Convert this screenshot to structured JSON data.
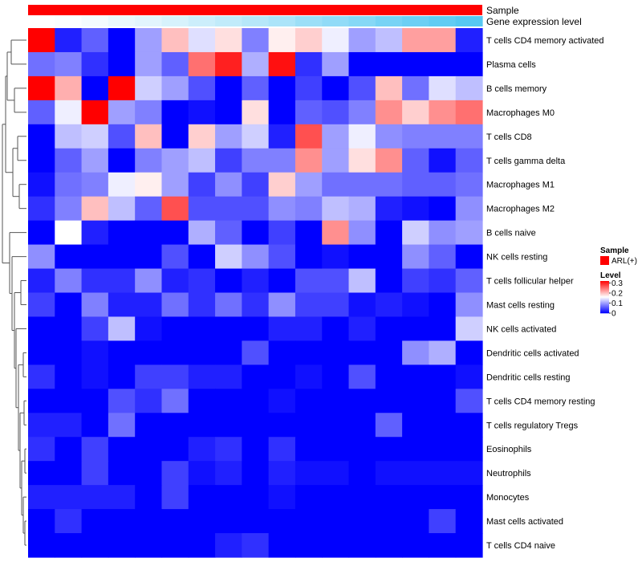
{
  "chart_data": {
    "type": "heatmap",
    "title": "",
    "rows": [
      "T cells CD4 memory activated",
      "Plasma cells",
      "B cells memory",
      "Macrophages M0",
      "T cells CD8",
      "T cells gamma delta",
      "Macrophages M1",
      "Macrophages M2",
      "B cells naive",
      "NK cells resting",
      "T cells follicular helper",
      "Mast cells resting",
      "NK cells activated",
      "Dendritic cells activated",
      "Dendritic cells resting",
      "T cells CD4 memory resting",
      "T cells regulatory  Tregs",
      "Eosinophils",
      "Neutrophils",
      "Monocytes",
      "Mast cells activated",
      "T cells CD4 naive"
    ],
    "n_columns": 17,
    "values": [
      [
        0.32,
        0.02,
        0.06,
        0.0,
        0.1,
        0.2,
        0.14,
        0.18,
        0.08,
        0.17,
        0.19,
        0.15,
        0.1,
        0.12,
        0.22,
        0.22,
        0.02
      ],
      [
        0.07,
        0.08,
        0.03,
        0.0,
        0.1,
        0.06,
        0.25,
        0.3,
        0.11,
        0.31,
        0.03,
        0.1,
        0.0,
        0.0,
        0.0,
        0.0,
        0.0
      ],
      [
        0.32,
        0.21,
        0.0,
        0.32,
        0.13,
        0.1,
        0.05,
        0.0,
        0.06,
        0.0,
        0.04,
        0.0,
        0.05,
        0.2,
        0.07,
        0.14,
        0.12
      ],
      [
        0.06,
        0.15,
        0.32,
        0.1,
        0.08,
        0.0,
        0.01,
        0.0,
        0.18,
        0.0,
        0.06,
        0.05,
        0.08,
        0.23,
        0.19,
        0.23,
        0.25
      ],
      [
        0.0,
        0.12,
        0.13,
        0.05,
        0.2,
        0.0,
        0.19,
        0.1,
        0.13,
        0.02,
        0.27,
        0.1,
        0.15,
        0.09,
        0.08,
        0.08,
        0.08
      ],
      [
        0.0,
        0.06,
        0.1,
        0.0,
        0.08,
        0.1,
        0.12,
        0.04,
        0.08,
        0.08,
        0.23,
        0.1,
        0.18,
        0.23,
        0.06,
        0.01,
        0.06
      ],
      [
        0.01,
        0.07,
        0.08,
        0.15,
        0.17,
        0.1,
        0.04,
        0.09,
        0.04,
        0.19,
        0.1,
        0.07,
        0.07,
        0.07,
        0.06,
        0.06,
        0.07
      ],
      [
        0.03,
        0.08,
        0.2,
        0.12,
        0.06,
        0.27,
        0.05,
        0.05,
        0.05,
        0.09,
        0.08,
        0.12,
        0.11,
        0.02,
        0.01,
        0.0,
        0.09
      ],
      [
        0.0,
        0.16,
        0.02,
        0.0,
        0.0,
        0.0,
        0.11,
        0.06,
        0.0,
        0.04,
        0.0,
        0.23,
        0.09,
        0.0,
        0.13,
        0.09,
        0.1
      ],
      [
        0.09,
        0.0,
        0.0,
        0.0,
        0.0,
        0.05,
        0.0,
        0.13,
        0.09,
        0.05,
        0.0,
        0.01,
        0.0,
        0.0,
        0.09,
        0.06,
        0.0
      ],
      [
        0.02,
        0.08,
        0.03,
        0.03,
        0.09,
        0.02,
        0.03,
        0.0,
        0.02,
        0.0,
        0.05,
        0.05,
        0.12,
        0.0,
        0.04,
        0.03,
        0.06
      ],
      [
        0.04,
        0.0,
        0.08,
        0.02,
        0.02,
        0.07,
        0.03,
        0.07,
        0.03,
        0.09,
        0.04,
        0.04,
        0.01,
        0.02,
        0.01,
        0.0,
        0.09
      ],
      [
        0.0,
        0.0,
        0.04,
        0.12,
        0.01,
        0.0,
        0.0,
        0.0,
        0.0,
        0.02,
        0.02,
        0.0,
        0.02,
        0.0,
        0.0,
        0.0,
        0.13
      ],
      [
        0.0,
        0.0,
        0.01,
        0.0,
        0.0,
        0.0,
        0.0,
        0.0,
        0.05,
        0.0,
        0.0,
        0.0,
        0.0,
        0.0,
        0.09,
        0.11,
        0.0
      ],
      [
        0.03,
        0.0,
        0.01,
        0.0,
        0.04,
        0.04,
        0.02,
        0.02,
        0.0,
        0.0,
        0.01,
        0.0,
        0.05,
        0.0,
        0.0,
        0.0,
        0.01
      ],
      [
        0.0,
        0.0,
        0.0,
        0.05,
        0.03,
        0.07,
        0.0,
        0.0,
        0.0,
        0.01,
        0.0,
        0.0,
        0.0,
        0.0,
        0.0,
        0.0,
        0.05
      ],
      [
        0.02,
        0.02,
        0.0,
        0.07,
        0.0,
        0.0,
        0.0,
        0.0,
        0.0,
        0.0,
        0.0,
        0.0,
        0.0,
        0.06,
        0.0,
        0.0,
        0.0
      ],
      [
        0.03,
        0.0,
        0.04,
        0.0,
        0.0,
        0.0,
        0.02,
        0.03,
        0.0,
        0.03,
        0.0,
        0.0,
        0.0,
        0.0,
        0.0,
        0.0,
        0.0
      ],
      [
        0.0,
        0.0,
        0.04,
        0.0,
        0.0,
        0.04,
        0.01,
        0.02,
        0.0,
        0.02,
        0.01,
        0.01,
        0.0,
        0.01,
        0.01,
        0.01,
        0.01
      ],
      [
        0.02,
        0.02,
        0.02,
        0.02,
        0.0,
        0.04,
        0.0,
        0.0,
        0.0,
        0.01,
        0.0,
        0.0,
        0.0,
        0.0,
        0.0,
        0.0,
        0.0
      ],
      [
        0.0,
        0.03,
        0.0,
        0.0,
        0.0,
        0.0,
        0.0,
        0.0,
        0.0,
        0.0,
        0.0,
        0.0,
        0.0,
        0.0,
        0.0,
        0.04,
        0.0
      ],
      [
        0.0,
        0.0,
        0.0,
        0.0,
        0.0,
        0.0,
        0.0,
        0.02,
        0.03,
        0.0,
        0.0,
        0.0,
        0.0,
        0.0,
        0.0,
        0.0,
        0.0
      ]
    ],
    "gene_expression_level": [
      0.0,
      0.01,
      0.03,
      0.06,
      0.08,
      0.11,
      0.14,
      0.17,
      0.2,
      0.23,
      0.27,
      0.3,
      0.33,
      0.37,
      0.4,
      0.43,
      0.46
    ],
    "annotations": [
      {
        "label": "Sample",
        "color": "#ff0000"
      },
      {
        "label": "Gene expression level",
        "low_color": "#ffffff",
        "high_color": "#56c8f2"
      }
    ],
    "legend": {
      "sample_title": "Sample",
      "sample_items": [
        {
          "label": "ARL(+)",
          "color": "#ff0000"
        }
      ],
      "level_title": "Level",
      "level_ticks": [
        "0.3",
        "0.2",
        "0.1",
        "0"
      ],
      "level_tick_values": [
        0.3,
        0.2,
        0.1,
        0
      ],
      "level_min": 0,
      "level_max": 0.32
    },
    "color_scale": {
      "low": "#0000ff",
      "mid": "#ffffff",
      "high": "#ff0000",
      "midpoint": 0.16
    }
  }
}
